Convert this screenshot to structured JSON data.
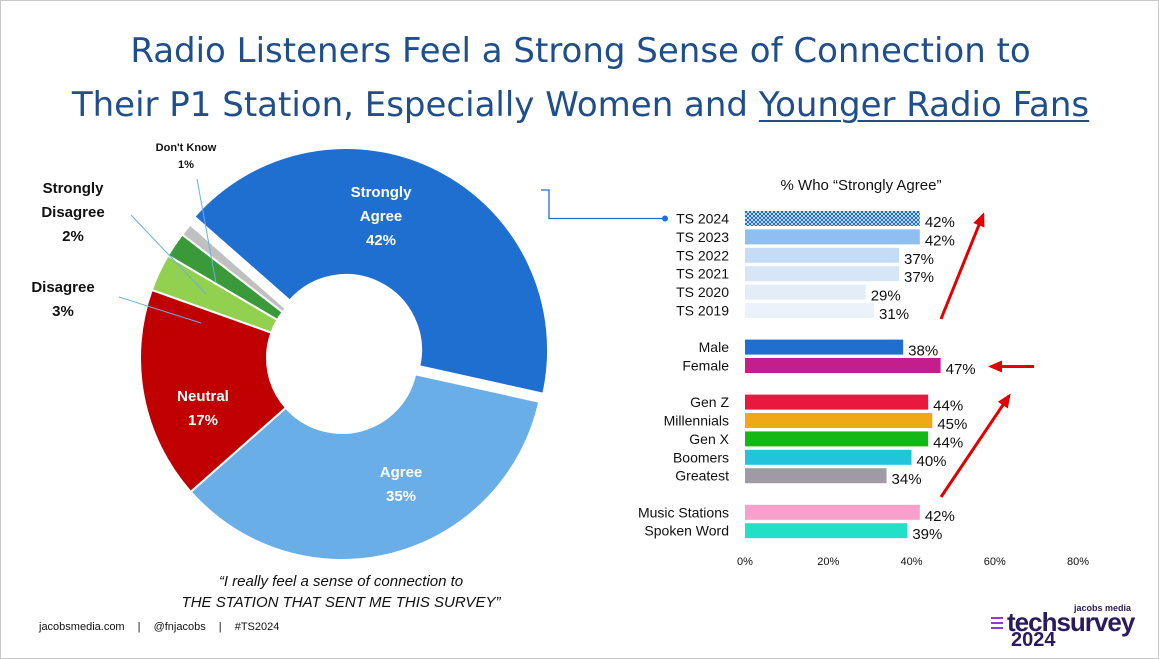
{
  "slide": {
    "title_line1": "Radio Listeners Feel a Strong Sense of Connection to",
    "title_line2_prefix": "Their P1 Station, Especially Women and ",
    "title_line2_underlined": "Younger Radio Fans",
    "quote_line1": "“I really feel a sense of connection to",
    "quote_line2": "THE STATION THAT SENT ME THIS SURVEY”",
    "footer": [
      "jacobsmedia.com",
      "@fnjacobs",
      "#TS2024"
    ],
    "footer_sep": "|",
    "logo": {
      "brand": "jacobs media",
      "name": "techsurvey",
      "year": "2024"
    }
  },
  "chart_data": [
    {
      "type": "pie",
      "subtype": "donut",
      "slices": [
        {
          "label": "Strongly Agree",
          "value": 42,
          "display": "42%",
          "color": "#1f6fd1",
          "label_color": "#ffffff"
        },
        {
          "label": "Agree",
          "value": 35,
          "display": "35%",
          "color": "#6aaee8",
          "label_color": "#ffffff"
        },
        {
          "label": "Neutral",
          "value": 17,
          "display": "17%",
          "color": "#c00000",
          "label_color": "#ffffff"
        },
        {
          "label": "Disagree",
          "value": 3,
          "display": "3%",
          "color": "#92d050",
          "label_color": "#111111"
        },
        {
          "label": "Strongly Disagree",
          "value": 2,
          "display": "2%",
          "color": "#3a9a3a",
          "label_color": "#111111"
        },
        {
          "label": "Don't Know",
          "value": 1,
          "display": "1%",
          "color": "#c0c0c0",
          "label_color": "#111111"
        }
      ],
      "exploded_slice": "Strongly Agree"
    },
    {
      "type": "bar",
      "orientation": "horizontal",
      "title": "% Who “Strongly Agree”",
      "xlim": [
        0,
        80
      ],
      "xticks": [
        "0%",
        "20%",
        "40%",
        "60%",
        "80%"
      ],
      "grid": false,
      "groups": [
        {
          "bars": [
            {
              "label": "TS 2024",
              "value": 42,
              "display": "42%",
              "color": "#1f6fd1",
              "pattern": "checker"
            },
            {
              "label": "TS 2023",
              "value": 42,
              "display": "42%",
              "color": "#8fbff0"
            },
            {
              "label": "TS 2022",
              "value": 37,
              "display": "37%",
              "color": "#c4dcf5"
            },
            {
              "label": "TS 2021",
              "value": 37,
              "display": "37%",
              "color": "#d6e6f7"
            },
            {
              "label": "TS 2020",
              "value": 29,
              "display": "29%",
              "color": "#e3edf8"
            },
            {
              "label": "TS 2019",
              "value": 31,
              "display": "31%",
              "color": "#ebf2fa"
            }
          ]
        },
        {
          "bars": [
            {
              "label": "Male",
              "value": 38,
              "display": "38%",
              "color": "#1f6fd1"
            },
            {
              "label": "Female",
              "value": 47,
              "display": "47%",
              "color": "#c41e8c"
            }
          ]
        },
        {
          "bars": [
            {
              "label": "Gen Z",
              "value": 44,
              "display": "44%",
              "color": "#e8183f"
            },
            {
              "label": "Millennials",
              "value": 45,
              "display": "45%",
              "color": "#f0a818"
            },
            {
              "label": "Gen X",
              "value": 44,
              "display": "44%",
              "color": "#14b814"
            },
            {
              "label": "Boomers",
              "value": 40,
              "display": "40%",
              "color": "#22c4dc"
            },
            {
              "label": "Greatest",
              "value": 34,
              "display": "34%",
              "color": "#a09aa4"
            }
          ]
        },
        {
          "bars": [
            {
              "label": "Music Stations",
              "value": 42,
              "display": "42%",
              "color": "#f7a0cc"
            },
            {
              "label": "Spoken Word",
              "value": 39,
              "display": "39%",
              "color": "#22e0c8"
            }
          ]
        }
      ],
      "annotations": [
        "red arrow up along TS years",
        "red arrow pointing to Female",
        "red arrow up along generations"
      ]
    }
  ]
}
